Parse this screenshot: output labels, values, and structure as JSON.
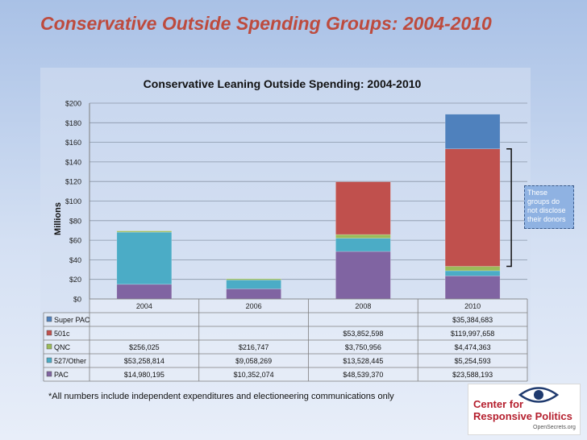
{
  "slide": {
    "title": "Conservative Outside Spending Groups: 2004-2010",
    "footnote": "*All numbers include independent expenditures and electioneering communications only",
    "callout": "These groups do not disclose their donors",
    "logo": {
      "line1": "Center for",
      "line2": "Responsive Politics",
      "line3": "OpenSecrets.org"
    }
  },
  "chart_data": {
    "type": "bar",
    "stacked": true,
    "title": "Conservative Leaning Outside Spending: 2004-2010",
    "ylabel": "Millions",
    "xlabel": "",
    "ylim": [
      0,
      200
    ],
    "y_ticks": [
      "$0",
      "$20",
      "$40",
      "$60",
      "$80",
      "$100",
      "$120",
      "$140",
      "$160",
      "$180",
      "$200"
    ],
    "grid": true,
    "categories": [
      "2004",
      "2006",
      "2008",
      "2010"
    ],
    "series": [
      {
        "name": "PAC",
        "color": "#8064a2",
        "values": [
          14.980195,
          10.352074,
          48.53937,
          23.588193
        ],
        "labels": [
          "$14,980,195",
          "$10,352,074",
          "$48,539,370",
          "$23,588,193"
        ]
      },
      {
        "name": "527/Other",
        "color": "#4bacc6",
        "values": [
          53.258814,
          9.058269,
          13.528445,
          5.254593
        ],
        "labels": [
          "$53,258,814",
          "$9,058,269",
          "$13,528,445",
          "$5,254,593"
        ]
      },
      {
        "name": "QNC",
        "color": "#9bbb59",
        "values": [
          0.256025,
          0.216747,
          3.750956,
          4.474363
        ],
        "labels": [
          "$256,025",
          "$216,747",
          "$3,750,956",
          "$4,474,363"
        ]
      },
      {
        "name": "501c",
        "color": "#c0504d",
        "values": [
          0,
          0,
          53.852598,
          119.997658
        ],
        "labels": [
          "",
          "",
          "$53,852,598",
          "$119,997,658"
        ]
      },
      {
        "name": "Super PAC",
        "color": "#4f81bd",
        "values": [
          0,
          0,
          0,
          35.384683
        ],
        "labels": [
          "",
          "",
          "",
          "$35,384,683"
        ]
      }
    ],
    "table_row_order": [
      "Super PAC",
      "501c",
      "QNC",
      "527/Other",
      "PAC"
    ]
  }
}
